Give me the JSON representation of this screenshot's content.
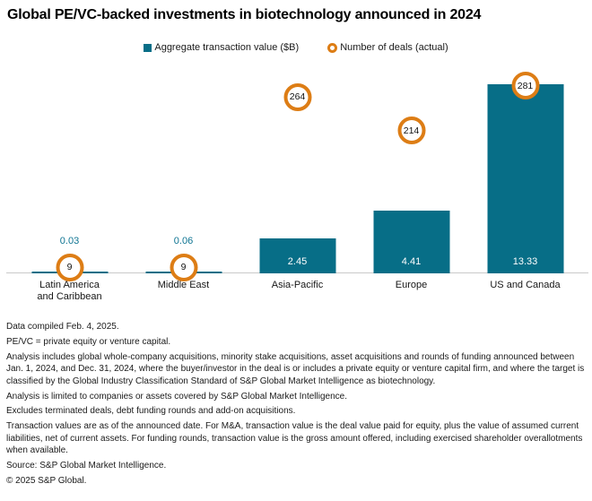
{
  "title": "Global PE/VC-backed investments in biotechnology announced in 2024",
  "legend": {
    "items": [
      {
        "label": "Aggregate transaction value ($B)",
        "marker": "square"
      },
      {
        "label": "Number of deals (actual)",
        "marker": "ring"
      }
    ]
  },
  "chart_data": {
    "type": "bar",
    "title": "Global PE/VC-backed investments in biotechnology announced in 2024",
    "categories": [
      "Latin America and Caribbean",
      "Middle East",
      "Asia-Pacific",
      "Europe",
      "US and Canada"
    ],
    "categories_wrapped": [
      [
        "Latin America",
        "and Caribbean"
      ],
      [
        "Middle East"
      ],
      [
        "Asia-Pacific"
      ],
      [
        "Europe"
      ],
      [
        "US and Canada"
      ]
    ],
    "series": [
      {
        "name": "Aggregate transaction value ($B)",
        "values": [
          0.03,
          0.06,
          2.45,
          4.41,
          13.33
        ],
        "labels": [
          "0.03",
          "0.06",
          "2.45",
          "4.41",
          "13.33"
        ],
        "label_position": [
          "above",
          "above",
          "inside",
          "inside",
          "inside"
        ]
      },
      {
        "name": "Number of deals (actual)",
        "values": [
          9,
          9,
          264,
          214,
          281
        ],
        "labels": [
          "9",
          "9",
          "264",
          "214",
          "281"
        ]
      }
    ],
    "xlabel": "",
    "ylabel": "",
    "value_axis_range": [
      0,
      14.85
    ],
    "deals_axis_range": [
      0,
      315
    ],
    "grid": false,
    "legend_position": "top"
  },
  "colors": {
    "bar": "#076e87",
    "deal_ring": "#dd7d15",
    "above_label": "#0e7492",
    "axis_line": "#c9c9c9",
    "inside_label": "#ffffff",
    "text": "#1a1a1a"
  },
  "footnotes": [
    "Data compiled Feb. 4, 2025.",
    "PE/VC = private equity or venture capital.",
    "Analysis includes global whole-company acquisitions, minority stake acquisitions, asset acquisitions and rounds of funding announced between Jan. 1, 2024, and Dec. 31, 2024, where the buyer/investor in the deal is or includes a private equity or venture capital firm, and where the target is classified by the Global Industry Classification Standard of S&P Global Market Intelligence as biotechnology.",
    "Analysis is limited to companies or assets covered by S&P Global Market Intelligence.",
    "Excludes terminated deals, debt funding rounds and add-on acquisitions.",
    "Transaction values are as of the announced date. For M&A, transaction value is the deal value paid for equity, plus the value of assumed current liabilities, net of current assets. For funding rounds, transaction value is the gross amount offered, including exercised shareholder overallotments when available.",
    "Source: S&P Global Market Intelligence.",
    "© 2025 S&P Global."
  ]
}
